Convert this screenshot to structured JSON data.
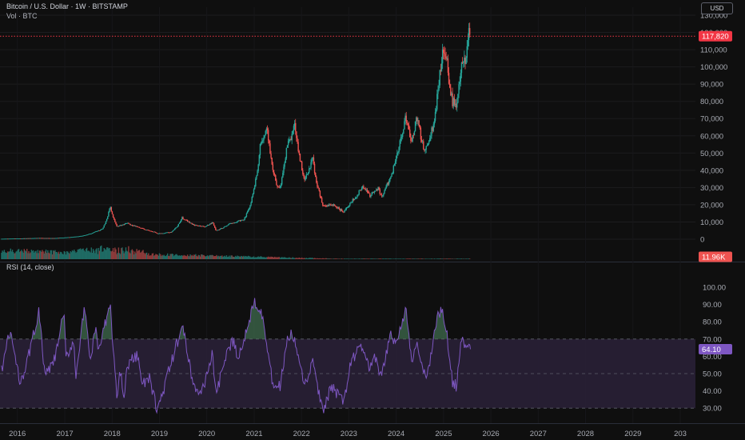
{
  "header": {
    "title": "Bitcoin / U.S. Dollar · 1W · BITSTAMP",
    "subtitle": "Vol · BTC",
    "currency": "USD"
  },
  "colors": {
    "background": "#0f0f0f",
    "up": "#26a69a",
    "down": "#ef5350",
    "rsi_line": "#7e57c2",
    "rsi_band": "#2a2138",
    "price_line": "#f23645",
    "volume_up": "#1f6b64",
    "volume_down": "#8b3a3a"
  },
  "chart_data": [
    {
      "type": "candlestick",
      "name": "price",
      "y_ticks": [
        "0",
        "10,000",
        "20,000",
        "30,000",
        "40,000",
        "50,000",
        "60,000",
        "70,000",
        "80,000",
        "90,000",
        "100,000",
        "110,000",
        "120,000",
        "130,000"
      ],
      "ylim": [
        0,
        130000
      ],
      "last_price": 117820,
      "last_price_label": "117,820",
      "trend": [
        [
          "2015-09-01",
          230
        ],
        [
          "2016-01-01",
          430
        ],
        [
          "2016-06-15",
          700
        ],
        [
          "2016-10-01",
          610
        ],
        [
          "2017-01-01",
          970
        ],
        [
          "2017-05-01",
          1800
        ],
        [
          "2017-09-01",
          4500
        ],
        [
          "2017-10-15",
          5800
        ],
        [
          "2017-12-17",
          19500
        ],
        [
          "2018-02-06",
          7500
        ],
        [
          "2018-05-01",
          9200
        ],
        [
          "2018-08-15",
          6300
        ],
        [
          "2018-11-20",
          4300
        ],
        [
          "2018-12-15",
          3200
        ],
        [
          "2019-04-01",
          4100
        ],
        [
          "2019-06-26",
          12500
        ],
        [
          "2019-09-25",
          8200
        ],
        [
          "2019-12-20",
          7200
        ],
        [
          "2020-02-15",
          10000
        ],
        [
          "2020-03-13",
          5000
        ],
        [
          "2020-07-01",
          9100
        ],
        [
          "2020-10-15",
          11500
        ],
        [
          "2020-12-31",
          29000
        ],
        [
          "2021-02-20",
          56000
        ],
        [
          "2021-04-14",
          63000
        ],
        [
          "2021-06-22",
          31000
        ],
        [
          "2021-07-20",
          30000
        ],
        [
          "2021-09-07",
          52000
        ],
        [
          "2021-11-10",
          67000
        ],
        [
          "2022-01-24",
          35000
        ],
        [
          "2022-03-28",
          47000
        ],
        [
          "2022-06-18",
          19000
        ],
        [
          "2022-09-01",
          20000
        ],
        [
          "2022-11-21",
          16000
        ],
        [
          "2023-01-15",
          21000
        ],
        [
          "2023-04-14",
          30500
        ],
        [
          "2023-06-15",
          25500
        ],
        [
          "2023-08-15",
          29000
        ],
        [
          "2023-09-11",
          25000
        ],
        [
          "2023-12-15",
          42000
        ],
        [
          "2024-03-14",
          73000
        ],
        [
          "2024-05-01",
          57000
        ],
        [
          "2024-06-07",
          71000
        ],
        [
          "2024-08-05",
          52000
        ],
        [
          "2024-09-07",
          54000
        ],
        [
          "2024-11-10",
          80000
        ],
        [
          "2024-12-17",
          106000
        ],
        [
          "2025-01-20",
          107000
        ],
        [
          "2025-03-10",
          80000
        ],
        [
          "2025-04-08",
          76000
        ],
        [
          "2025-05-20",
          106000
        ],
        [
          "2025-06-22",
          100000
        ],
        [
          "2025-07-14",
          122000
        ],
        [
          "2025-07-27",
          117820
        ]
      ]
    },
    {
      "type": "bar",
      "name": "volume",
      "last_label": "11.96K"
    },
    {
      "type": "line",
      "name": "rsi",
      "title": "RSI (14, close)",
      "y_ticks": [
        "30.00",
        "40.00",
        "50.00",
        "60.00",
        "70.00",
        "80.00",
        "90.00",
        "100.00"
      ],
      "ylim": [
        25,
        100
      ],
      "band": [
        30,
        70
      ],
      "middle": 50,
      "last_value": 64.1,
      "last_label": "64.10",
      "trend": [
        [
          "2015-09-01",
          52
        ],
        [
          "2015-10-15",
          68
        ],
        [
          "2015-11-10",
          74
        ],
        [
          "2016-01-15",
          46
        ],
        [
          "2016-03-01",
          52
        ],
        [
          "2016-06-15",
          86
        ],
        [
          "2016-08-01",
          48
        ],
        [
          "2016-10-15",
          58
        ],
        [
          "2016-12-25",
          86
        ],
        [
          "2017-01-10",
          58
        ],
        [
          "2017-03-10",
          70
        ],
        [
          "2017-03-25",
          48
        ],
        [
          "2017-06-01",
          88
        ],
        [
          "2017-07-15",
          57
        ],
        [
          "2017-09-01",
          78
        ],
        [
          "2017-09-15",
          62
        ],
        [
          "2017-12-17",
          90
        ],
        [
          "2018-02-06",
          36
        ],
        [
          "2018-03-05",
          52
        ],
        [
          "2018-04-01",
          38
        ],
        [
          "2018-05-01",
          55
        ],
        [
          "2018-07-25",
          62
        ],
        [
          "2018-08-15",
          43
        ],
        [
          "2018-10-15",
          47
        ],
        [
          "2018-12-15",
          29
        ],
        [
          "2019-01-20",
          37
        ],
        [
          "2019-03-01",
          48
        ],
        [
          "2019-06-26",
          78
        ],
        [
          "2019-09-25",
          42
        ],
        [
          "2019-11-20",
          38
        ],
        [
          "2020-02-15",
          62
        ],
        [
          "2020-03-13",
          36
        ],
        [
          "2020-05-10",
          56
        ],
        [
          "2020-07-28",
          70
        ],
        [
          "2020-09-01",
          58
        ],
        [
          "2020-10-15",
          70
        ],
        [
          "2020-12-31",
          92
        ],
        [
          "2021-02-20",
          88
        ],
        [
          "2021-03-15",
          80
        ],
        [
          "2021-05-20",
          45
        ],
        [
          "2021-07-20",
          42
        ],
        [
          "2021-09-07",
          68
        ],
        [
          "2021-10-20",
          73
        ],
        [
          "2021-11-10",
          68
        ],
        [
          "2022-01-24",
          42
        ],
        [
          "2022-03-28",
          57
        ],
        [
          "2022-06-18",
          26
        ],
        [
          "2022-08-15",
          43
        ],
        [
          "2022-11-21",
          33
        ],
        [
          "2023-01-20",
          58
        ],
        [
          "2023-04-14",
          66
        ],
        [
          "2023-06-15",
          52
        ],
        [
          "2023-07-15",
          60
        ],
        [
          "2023-09-11",
          47
        ],
        [
          "2023-11-20",
          74
        ],
        [
          "2024-01-01",
          67
        ],
        [
          "2024-03-14",
          88
        ],
        [
          "2024-05-01",
          55
        ],
        [
          "2024-06-07",
          68
        ],
        [
          "2024-08-05",
          49
        ],
        [
          "2024-09-07",
          52
        ],
        [
          "2024-11-10",
          82
        ],
        [
          "2024-12-17",
          86
        ],
        [
          "2025-01-20",
          77
        ],
        [
          "2025-03-10",
          45
        ],
        [
          "2025-04-08",
          43
        ],
        [
          "2025-05-20",
          71
        ],
        [
          "2025-06-22",
          62
        ],
        [
          "2025-07-14",
          71
        ],
        [
          "2025-07-27",
          64.1
        ]
      ]
    }
  ],
  "x_axis": {
    "labels": [
      "2016",
      "2017",
      "2018",
      "2019",
      "2020",
      "2021",
      "2022",
      "2023",
      "2024",
      "2025",
      "2026",
      "2027",
      "2028",
      "2029",
      "203"
    ],
    "start": "2015-08-20",
    "end": "2030-04-28"
  }
}
